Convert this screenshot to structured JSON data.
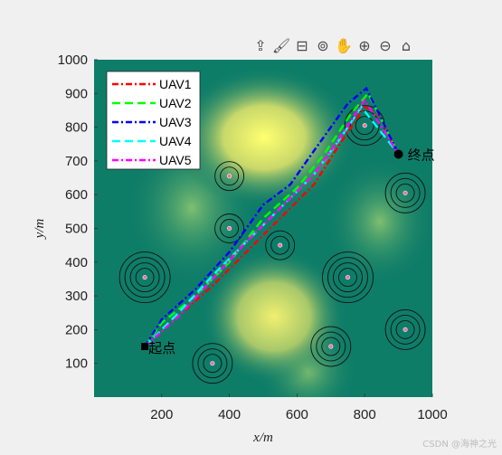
{
  "toolbar": {
    "icons": [
      "export-icon",
      "brush-icon",
      "data-tips-icon",
      "rotate-icon",
      "pan-icon",
      "zoom-in-icon",
      "zoom-out-icon",
      "home-icon"
    ],
    "glyphs": [
      "⇪",
      "🖌",
      "⊟",
      "⊚",
      "✋",
      "⊕",
      "⊖",
      "⌂"
    ]
  },
  "watermark": "CSDN @海神之光",
  "chart_data": {
    "type": "line",
    "xlabel": "x/m",
    "ylabel": "y/m",
    "xlim": [
      0,
      1000
    ],
    "ylim": [
      0,
      1000
    ],
    "xticks": [
      200,
      400,
      600,
      800,
      1000
    ],
    "yticks": [
      100,
      200,
      300,
      400,
      500,
      600,
      700,
      800,
      900,
      1000
    ],
    "grid": false,
    "legend_position": "top-left",
    "background": "terrain colormap (green to yellow)",
    "start": {
      "label": "起点",
      "x": 150,
      "y": 150
    },
    "goal": {
      "label": "终点",
      "x": 900,
      "y": 720
    },
    "threats": [
      {
        "x": 150,
        "y": 355,
        "rings": 4
      },
      {
        "x": 400,
        "y": 655,
        "rings": 2
      },
      {
        "x": 400,
        "y": 500,
        "rings": 2
      },
      {
        "x": 550,
        "y": 450,
        "rings": 2
      },
      {
        "x": 750,
        "y": 355,
        "rings": 4
      },
      {
        "x": 800,
        "y": 805,
        "rings": 3
      },
      {
        "x": 920,
        "y": 605,
        "rings": 3
      },
      {
        "x": 920,
        "y": 200,
        "rings": 3
      },
      {
        "x": 700,
        "y": 150,
        "rings": 3
      },
      {
        "x": 350,
        "y": 100,
        "rings": 3
      }
    ],
    "series": [
      {
        "name": "UAV1",
        "color": "#ff0000",
        "dash": "dashdot",
        "x": [
          150,
          250,
          350,
          450,
          550,
          650,
          720,
          800,
          840,
          900
        ],
        "y": [
          150,
          240,
          330,
          430,
          530,
          630,
          740,
          860,
          840,
          720
        ]
      },
      {
        "name": "UAV2",
        "color": "#00ff00",
        "dash": "dash",
        "x": [
          150,
          200,
          300,
          400,
          500,
          600,
          680,
          760,
          810,
          900
        ],
        "y": [
          150,
          220,
          300,
          400,
          530,
          620,
          720,
          840,
          900,
          720
        ]
      },
      {
        "name": "UAV3",
        "color": "#0000ff",
        "dash": "dashdot",
        "x": [
          150,
          200,
          300,
          400,
          500,
          580,
          650,
          750,
          805,
          900
        ],
        "y": [
          150,
          230,
          320,
          430,
          570,
          630,
          730,
          870,
          915,
          720
        ]
      },
      {
        "name": "UAV4",
        "color": "#00ffff",
        "dash": "dash",
        "x": [
          150,
          250,
          350,
          450,
          550,
          650,
          730,
          790,
          900
        ],
        "y": [
          150,
          250,
          360,
          460,
          560,
          660,
          770,
          860,
          720
        ]
      },
      {
        "name": "UAV5",
        "color": "#ff00ff",
        "dash": "dashdot",
        "x": [
          150,
          250,
          350,
          450,
          550,
          650,
          720,
          800,
          900
        ],
        "y": [
          150,
          240,
          350,
          460,
          560,
          660,
          760,
          880,
          720
        ]
      }
    ]
  }
}
